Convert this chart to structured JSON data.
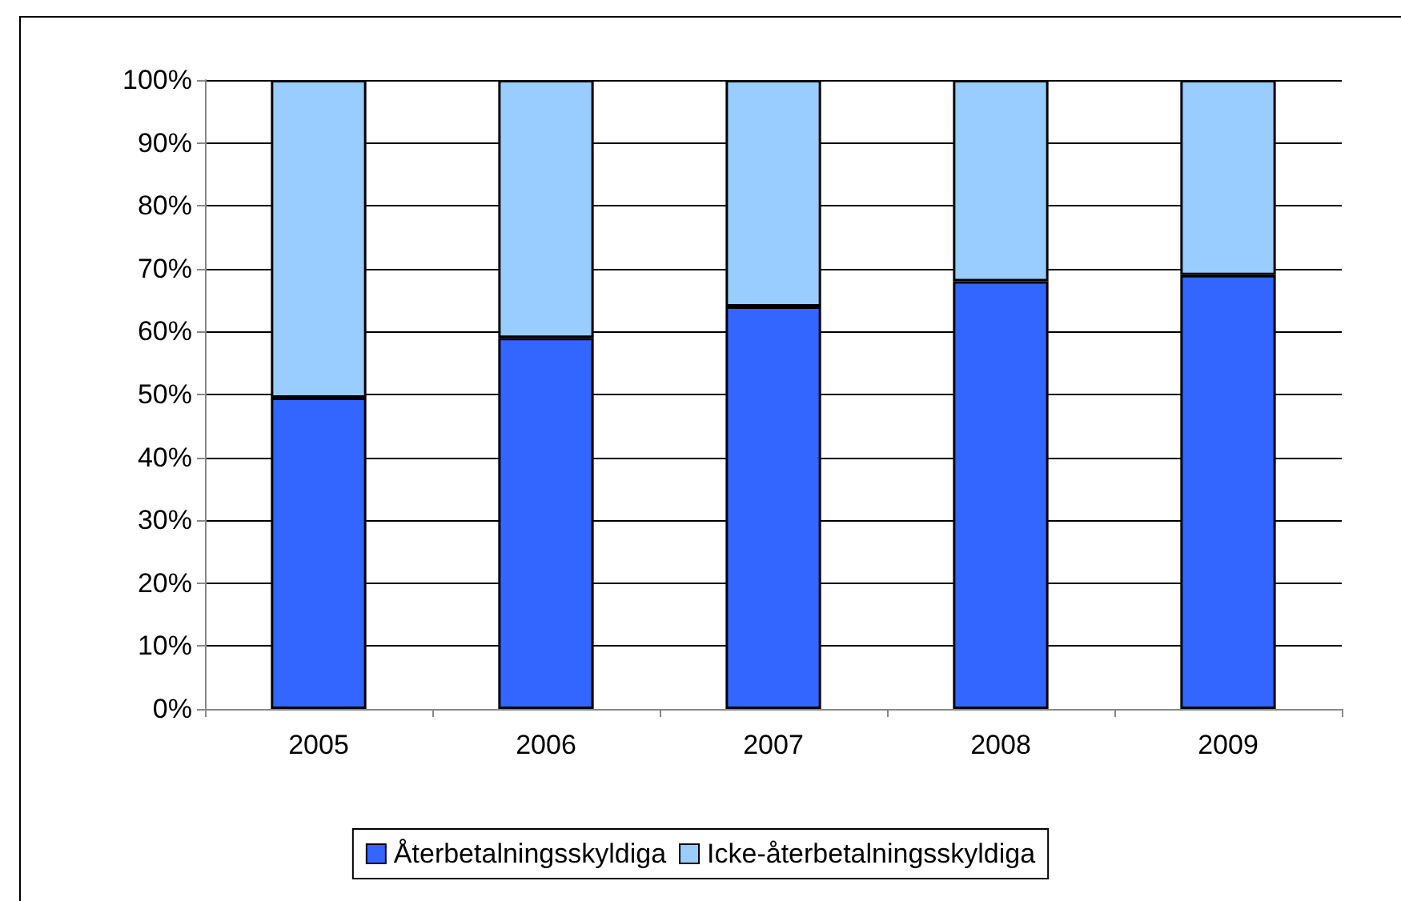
{
  "chart_data": {
    "type": "bar",
    "stacked": true,
    "categories": [
      "2005",
      "2006",
      "2007",
      "2008",
      "2009"
    ],
    "series": [
      {
        "name": "Återbetalningsskyldiga",
        "color": "#3366ff",
        "values": [
          49.5,
          59,
          64,
          68,
          69
        ]
      },
      {
        "name": "Icke-återbetalningsskyldiga",
        "color": "#99ccff",
        "values": [
          50.5,
          41,
          36,
          32,
          31
        ]
      }
    ],
    "ylim": [
      0,
      100
    ],
    "yticks": [
      {
        "value": 0,
        "label": "0%"
      },
      {
        "value": 10,
        "label": "10%"
      },
      {
        "value": 20,
        "label": "20%"
      },
      {
        "value": 30,
        "label": "30%"
      },
      {
        "value": 40,
        "label": "40%"
      },
      {
        "value": 50,
        "label": "50%"
      },
      {
        "value": 60,
        "label": "60%"
      },
      {
        "value": 70,
        "label": "70%"
      },
      {
        "value": 80,
        "label": "80%"
      },
      {
        "value": 90,
        "label": "90%"
      },
      {
        "value": 100,
        "label": "100%"
      }
    ],
    "grid": "y",
    "legend": "bottom"
  }
}
